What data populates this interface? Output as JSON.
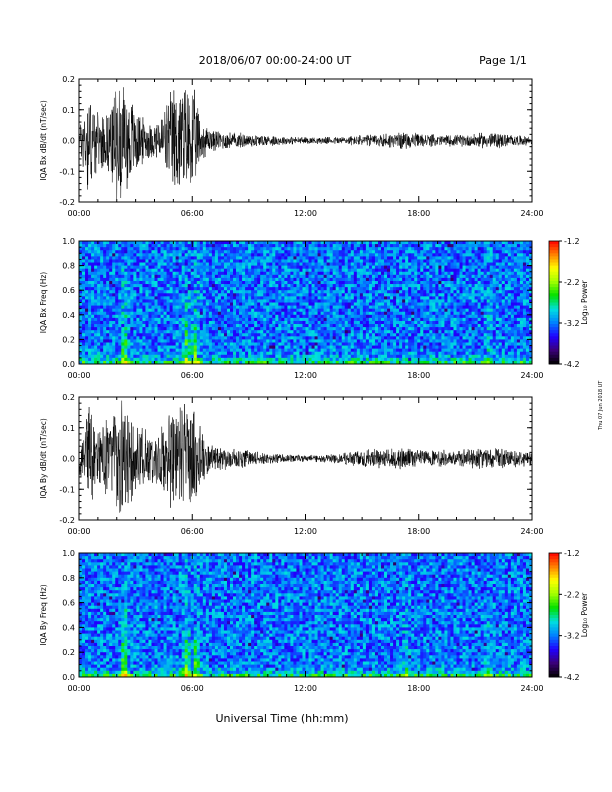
{
  "header": {
    "title": "2018/06/07  00:00-24:00 UT",
    "page": "Page 1/1"
  },
  "footer": {
    "xlabel": "Universal Time (hh:mm)"
  },
  "side_note": "Thu 07 Jun 2018 UT",
  "colors": {
    "trace": "#000000",
    "spectrogram_scale": [
      "#000000",
      "#3a0078",
      "#2000ff",
      "#0080ff",
      "#00e0e0",
      "#00e000",
      "#a0ff00",
      "#ffff00",
      "#ff8000",
      "#ff0000"
    ]
  },
  "chart_data": [
    {
      "type": "line",
      "panel": "bx-timeseries",
      "ylabel": "IQA Bx dB/dt (nT/sec)",
      "ylim": [
        -0.2,
        0.2
      ],
      "yticks": [
        "0.2",
        "0.1",
        "0.0",
        "-0.1",
        "-0.2"
      ],
      "xlim": [
        0,
        24
      ],
      "xticks": [
        "00:00",
        "06:00",
        "12:00",
        "18:00",
        "24:00"
      ],
      "series": [
        {
          "x": [
            0,
            0.5,
            1,
            1.5,
            2,
            2.5,
            3,
            3.5,
            4,
            4.5,
            5,
            5.5,
            6,
            6.5,
            7,
            8,
            9,
            10,
            11,
            12,
            13,
            14,
            15,
            16,
            17,
            18,
            19,
            20,
            21,
            22,
            23,
            24
          ],
          "envelope": [
            0.05,
            0.2,
            0.09,
            0.1,
            0.2,
            0.2,
            0.12,
            0.07,
            0.06,
            0.11,
            0.2,
            0.2,
            0.2,
            0.07,
            0.04,
            0.03,
            0.025,
            0.02,
            0.015,
            0.012,
            0.012,
            0.015,
            0.02,
            0.025,
            0.03,
            0.025,
            0.02,
            0.02,
            0.025,
            0.03,
            0.02,
            0.015
          ]
        }
      ]
    },
    {
      "type": "heatmap",
      "panel": "bx-spectrogram",
      "ylabel": "IQA Bx Freq (Hz)",
      "ylim": [
        0.0,
        1.0
      ],
      "yticks": [
        "1.0",
        "0.8",
        "0.6",
        "0.4",
        "0.2",
        "0.0"
      ],
      "xlim": [
        0,
        24
      ],
      "xticks": [
        "00:00",
        "06:00",
        "12:00",
        "18:00",
        "24:00"
      ],
      "colorbar": {
        "label": "Log₁₀ Power",
        "range": [
          -4.2,
          -1.2
        ],
        "ticks": [
          "-1.2",
          "-2.2",
          "-3.2",
          "-4.2"
        ]
      },
      "bursts": [
        {
          "t": 2.4,
          "strength": 1.0
        },
        {
          "t": 5.7,
          "strength": 0.9
        },
        {
          "t": 6.2,
          "strength": 0.8
        },
        {
          "t": 21.7,
          "strength": 0.3
        }
      ]
    },
    {
      "type": "line",
      "panel": "by-timeseries",
      "ylabel": "IQA By dB/dt (nT/sec)",
      "ylim": [
        -0.2,
        0.2
      ],
      "yticks": [
        "0.2",
        "0.1",
        "0.0",
        "-0.1",
        "-0.2"
      ],
      "xlim": [
        0,
        24
      ],
      "xticks": [
        "00:00",
        "06:00",
        "12:00",
        "18:00",
        "24:00"
      ],
      "series": [
        {
          "x": [
            0,
            0.5,
            1,
            1.5,
            2,
            2.5,
            3,
            3.5,
            4,
            4.5,
            5,
            5.5,
            6,
            6.5,
            7,
            8,
            9,
            10,
            11,
            12,
            13,
            14,
            15,
            16,
            17,
            18,
            19,
            20,
            21,
            22,
            23,
            24
          ],
          "envelope": [
            0.06,
            0.2,
            0.12,
            0.14,
            0.2,
            0.2,
            0.15,
            0.1,
            0.09,
            0.12,
            0.2,
            0.2,
            0.2,
            0.09,
            0.05,
            0.035,
            0.03,
            0.02,
            0.015,
            0.012,
            0.015,
            0.02,
            0.03,
            0.035,
            0.04,
            0.035,
            0.03,
            0.03,
            0.035,
            0.04,
            0.03,
            0.025
          ]
        }
      ]
    },
    {
      "type": "heatmap",
      "panel": "by-spectrogram",
      "ylabel": "IQA By Freq (Hz)",
      "ylim": [
        0.0,
        1.0
      ],
      "yticks": [
        "1.0",
        "0.8",
        "0.6",
        "0.4",
        "0.2",
        "0.0"
      ],
      "xlim": [
        0,
        24
      ],
      "xticks": [
        "00:00",
        "06:00",
        "12:00",
        "18:00",
        "24:00"
      ],
      "colorbar": {
        "label": "Log₁₀ Power",
        "range": [
          -4.2,
          -1.2
        ],
        "ticks": [
          "-1.2",
          "-2.2",
          "-3.2",
          "-4.2"
        ]
      },
      "bursts": [
        {
          "t": 2.4,
          "strength": 1.0
        },
        {
          "t": 5.7,
          "strength": 0.9
        },
        {
          "t": 6.2,
          "strength": 0.8
        },
        {
          "t": 17.3,
          "strength": 0.35
        },
        {
          "t": 21.7,
          "strength": 0.3
        }
      ]
    }
  ]
}
